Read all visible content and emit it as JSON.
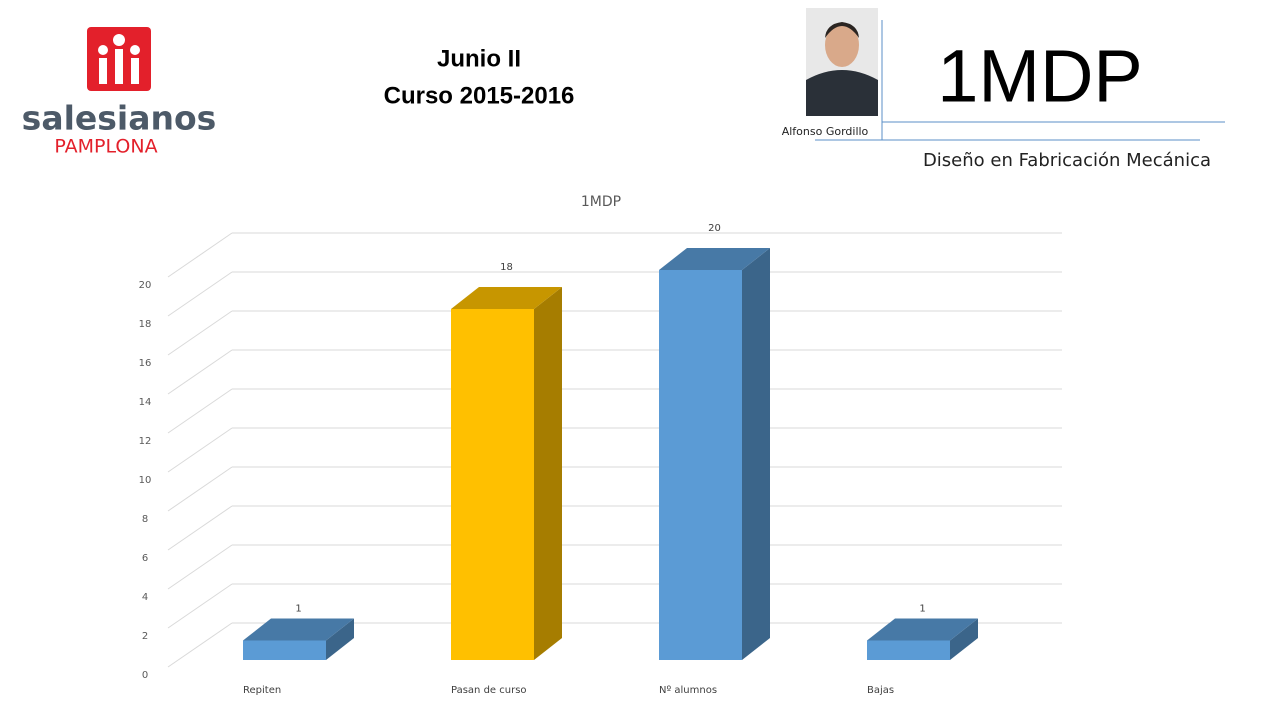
{
  "header": {
    "title_line1": "Junio II",
    "title_line2": "Curso 2015-2016",
    "logo_name": "salesianos",
    "logo_city": "PAMPLONA",
    "person": "Alfonso Gordillo",
    "code": "1MDP",
    "subtitle": "Diseño en Fabricación Mecánica"
  },
  "chart_data": {
    "type": "bar",
    "title": "1MDP",
    "categories": [
      "Repiten",
      "Pasan de curso",
      "Nº alumnos",
      "Bajas"
    ],
    "values": [
      1,
      18,
      20,
      1
    ],
    "colors": [
      "#5b9bd5",
      "#ffc000",
      "#5b9bd5",
      "#5b9bd5"
    ],
    "ylim": [
      0,
      20
    ],
    "yticks": [
      0,
      2,
      4,
      6,
      8,
      10,
      12,
      14,
      16,
      18,
      20
    ],
    "grid": true
  }
}
